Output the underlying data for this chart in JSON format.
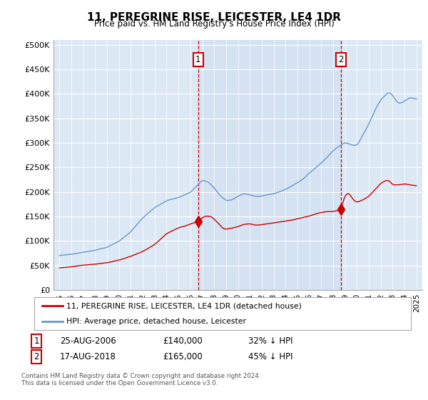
{
  "title": "11, PEREGRINE RISE, LEICESTER, LE4 1DR",
  "subtitle": "Price paid vs. HM Land Registry's House Price Index (HPI)",
  "ylabel_ticks": [
    "£0",
    "£50K",
    "£100K",
    "£150K",
    "£200K",
    "£250K",
    "£300K",
    "£350K",
    "£400K",
    "£450K",
    "£500K"
  ],
  "ytick_values": [
    0,
    50000,
    100000,
    150000,
    200000,
    250000,
    300000,
    350000,
    400000,
    450000,
    500000
  ],
  "ylim": [
    0,
    510000
  ],
  "xlim_start": 1994.5,
  "xlim_end": 2025.5,
  "bg_color": "#dde8f5",
  "highlight_color": "#ccddf0",
  "fig_bg": "#ffffff",
  "red_color": "#cc0000",
  "blue_color": "#6699cc",
  "sale1_x": 2006.65,
  "sale1_y": 140000,
  "sale2_x": 2018.63,
  "sale2_y": 165000,
  "legend_line1": "11, PEREGRINE RISE, LEICESTER, LE4 1DR (detached house)",
  "legend_line2": "HPI: Average price, detached house, Leicester",
  "table_row1": [
    "1",
    "25-AUG-2006",
    "£140,000",
    "32% ↓ HPI"
  ],
  "table_row2": [
    "2",
    "17-AUG-2018",
    "£165,000",
    "45% ↓ HPI"
  ],
  "footnote": "Contains HM Land Registry data © Crown copyright and database right 2024.\nThis data is licensed under the Open Government Licence v3.0.",
  "xticks": [
    1995,
    1996,
    1997,
    1998,
    1999,
    2000,
    2001,
    2002,
    2003,
    2004,
    2005,
    2006,
    2007,
    2008,
    2009,
    2010,
    2011,
    2012,
    2013,
    2014,
    2015,
    2016,
    2017,
    2018,
    2019,
    2020,
    2021,
    2022,
    2023,
    2024,
    2025
  ]
}
